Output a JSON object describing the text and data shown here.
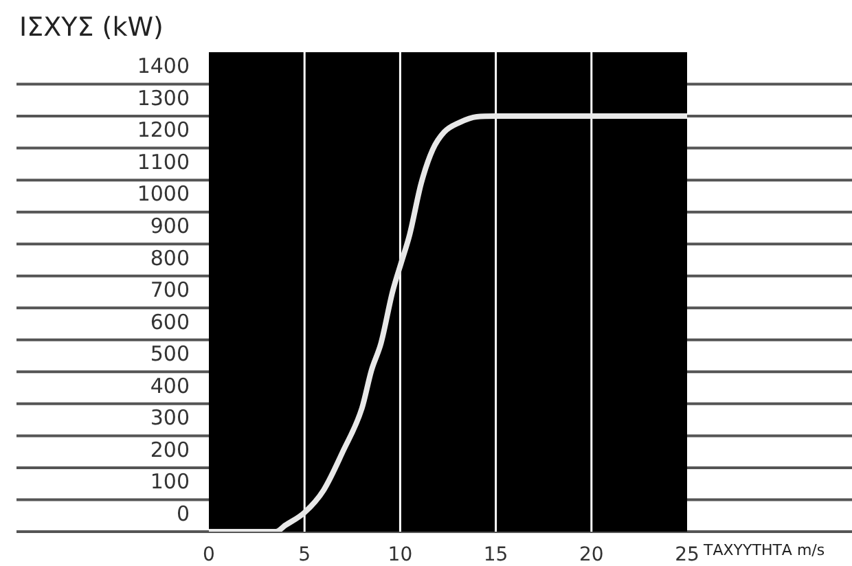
{
  "chart_data": {
    "type": "line",
    "ylabel": "ΙΣΧΥΣ (kW)",
    "xlabel": "ΤΑΧΥΥΤΗΤΑ m/s",
    "x": [
      0,
      3.5,
      4,
      5,
      6,
      7,
      8,
      8.5,
      9,
      9.6,
      10.1,
      10.5,
      11.1,
      11.7,
      12.3,
      13.1,
      14,
      15,
      20,
      25
    ],
    "series": [
      {
        "color": "#e8e8e8",
        "values": [
          0,
          0,
          20,
          60,
          130,
          250,
          386,
          505,
          590,
          750,
          850,
          930,
          1090,
          1195,
          1250,
          1280,
          1298,
          1300,
          1300,
          1300
        ]
      }
    ],
    "xlim": [
      0,
      25
    ],
    "xticks": [
      0,
      5,
      10,
      15,
      20,
      25
    ],
    "ylim": [
      0,
      1500
    ],
    "yticks": [
      0,
      100,
      200,
      300,
      400,
      500,
      600,
      700,
      800,
      900,
      1000,
      1100,
      1200,
      1300,
      1400
    ],
    "grid": true,
    "legend": false,
    "marker": "none",
    "line_style": "solid"
  }
}
